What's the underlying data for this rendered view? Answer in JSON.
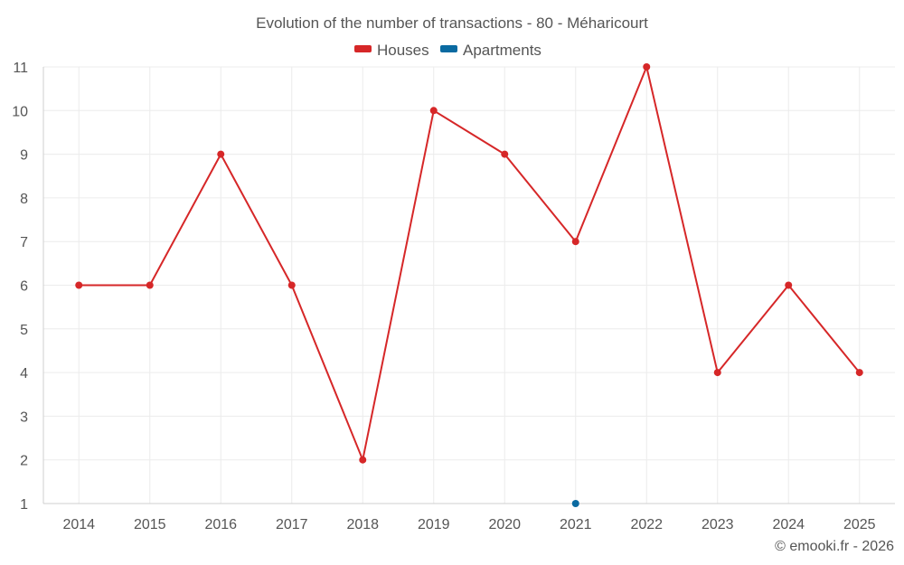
{
  "chart_data": {
    "type": "line",
    "title": "Evolution of the number of transactions - 80 - Méharicourt",
    "categories": [
      "2014",
      "2015",
      "2016",
      "2017",
      "2018",
      "2019",
      "2020",
      "2021",
      "2022",
      "2023",
      "2024",
      "2025"
    ],
    "series": [
      {
        "name": "Houses",
        "color": "#d62728",
        "values": [
          6,
          6,
          9,
          6,
          2,
          10,
          9,
          7,
          11,
          4,
          6,
          4
        ]
      },
      {
        "name": "Apartments",
        "color": "#0a6aa1",
        "values": [
          null,
          null,
          null,
          null,
          null,
          null,
          null,
          1,
          null,
          null,
          null,
          null
        ]
      }
    ],
    "ylim": [
      1,
      11
    ],
    "yticks": [
      "1",
      "2",
      "3",
      "4",
      "5",
      "6",
      "7",
      "8",
      "9",
      "10",
      "11"
    ],
    "xlabel": "",
    "ylabel": "",
    "grid": true,
    "legend_position": "top-center"
  },
  "credit": "© emooki.fr - 2026"
}
